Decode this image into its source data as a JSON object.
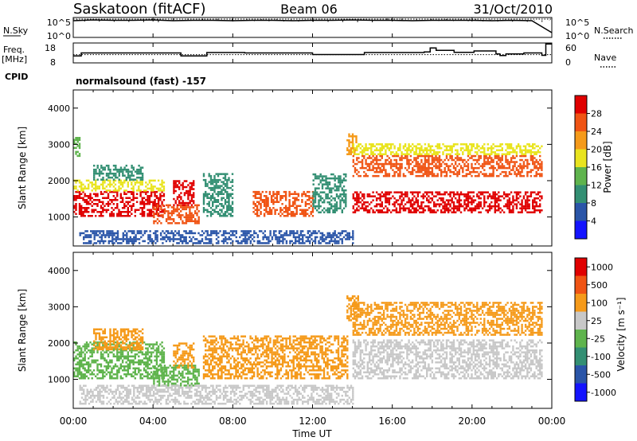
{
  "header": {
    "station": "Saskatoon (fitACF)",
    "beam": "Beam 06",
    "date": "31/Oct/2010"
  },
  "nsky_panel": {
    "left_label": "N.Sky",
    "right_label": "N.Search",
    "left_ticks": [
      "10^5",
      "10^0"
    ],
    "right_ticks": [
      "10^5",
      "10^0"
    ]
  },
  "freq_panel": {
    "left_label_1": "Freq.",
    "left_label_2": "[MHz]",
    "right_label": "Nave",
    "left_ticks": [
      "18",
      "8"
    ],
    "right_ticks": [
      "60",
      "0"
    ]
  },
  "cpid": {
    "label": "CPID",
    "value": "normalsound (fast) -157"
  },
  "xaxis": {
    "title": "Time UT",
    "ticks": [
      "00:00",
      "04:00",
      "08:00",
      "12:00",
      "16:00",
      "20:00",
      "00:00"
    ]
  },
  "chart_data": [
    {
      "type": "line",
      "title": "N.Sky / N.Search",
      "xlabel": "",
      "ylabel": "",
      "x_range": [
        "00:00",
        "24:00"
      ],
      "ylim_log10": [
        0,
        5
      ],
      "series": [
        {
          "name": "N.Sky",
          "x_hours": [
            0,
            1,
            2,
            3,
            4,
            5,
            6,
            7,
            8,
            9,
            10,
            11,
            12,
            13,
            14,
            15,
            16,
            17,
            18,
            19,
            20,
            21,
            22,
            23,
            24
          ],
          "values_log10": [
            4.2,
            4.4,
            4.3,
            4.3,
            4.4,
            4.2,
            4.3,
            4.3,
            4.2,
            4.3,
            4.3,
            4.2,
            4.3,
            4.3,
            4.4,
            4.3,
            4.3,
            4.2,
            4.3,
            4.3,
            4.3,
            4.2,
            4.3,
            4.2,
            1.2
          ]
        },
        {
          "name": "N.Search",
          "x_hours": [
            0,
            4,
            8,
            12,
            16,
            20,
            24
          ],
          "values_log10": [
            4.6,
            4.6,
            4.6,
            4.6,
            4.6,
            4.6,
            4.6
          ]
        }
      ]
    },
    {
      "type": "line",
      "title": "Freq. / Nave",
      "xlabel": "",
      "ylabel": "Freq. [MHz]",
      "ylim": [
        8,
        18
      ],
      "y2lim": [
        0,
        60
      ],
      "series": [
        {
          "name": "Freq.",
          "x_hours": [
            0,
            0.4,
            5.4,
            6.7,
            8.6,
            12.0,
            14.6,
            17.6,
            17.9,
            18.2,
            19.1,
            20.1,
            21.2,
            21.4,
            21.7,
            22.6,
            23.5,
            23.7,
            24
          ],
          "values": [
            11.5,
            13.0,
            11.5,
            13.2,
            13.0,
            12.2,
            13.2,
            13.5,
            15.5,
            14.3,
            13.3,
            14.0,
            12.5,
            11.7,
            12.5,
            13.0,
            11.8,
            17.5,
            17.5
          ]
        },
        {
          "name": "Nave",
          "x_hours": [
            0,
            24
          ],
          "values": [
            25,
            25
          ]
        }
      ]
    },
    {
      "type": "heatmap",
      "title": "",
      "xlabel": "Time UT",
      "ylabel": "Slant Range [km]",
      "x_range": [
        "00:00",
        "24:00"
      ],
      "ylim": [
        200,
        4500
      ],
      "yticks": [
        1000,
        2000,
        3000,
        4000
      ],
      "colorbar": {
        "label": "Power [dB]",
        "ticks": [
          "4",
          "8",
          "12",
          "16",
          "20",
          "24",
          "28"
        ],
        "colors": [
          "#1414ff",
          "#2a55a8",
          "#338f73",
          "#5fb44d",
          "#e9e41f",
          "#f59a1a",
          "#f05414",
          "#e00000"
        ]
      },
      "scatter_bands": [
        {
          "t0": 0.0,
          "t1": 0.3,
          "r0": 2600,
          "r1": 3200,
          "level": 3
        },
        {
          "t0": 0.0,
          "t1": 4.5,
          "r0": 1000,
          "r1": 1700,
          "level": 7
        },
        {
          "t0": 0.0,
          "t1": 4.5,
          "r0": 1700,
          "r1": 2000,
          "level": 4
        },
        {
          "t0": 1.0,
          "t1": 3.5,
          "r0": 2000,
          "r1": 2400,
          "level": 2
        },
        {
          "t0": 4.0,
          "t1": 6.3,
          "r0": 800,
          "r1": 1300,
          "level": 6
        },
        {
          "t0": 5.0,
          "t1": 6.0,
          "r0": 1300,
          "r1": 2000,
          "level": 7
        },
        {
          "t0": 6.5,
          "t1": 8.0,
          "r0": 1000,
          "r1": 2200,
          "level": 2
        },
        {
          "t0": 9.0,
          "t1": 12.0,
          "r0": 1000,
          "r1": 1700,
          "level": 6
        },
        {
          "t0": 12.0,
          "t1": 13.7,
          "r0": 1100,
          "r1": 2200,
          "level": 2
        },
        {
          "t0": 13.7,
          "t1": 14.2,
          "r0": 2700,
          "r1": 3300,
          "level": 5
        },
        {
          "t0": 14.0,
          "t1": 23.5,
          "r0": 1100,
          "r1": 1700,
          "level": 7
        },
        {
          "t0": 14.0,
          "t1": 23.5,
          "r0": 2100,
          "r1": 2700,
          "level": 6
        },
        {
          "t0": 14.0,
          "t1": 23.5,
          "r0": 2700,
          "r1": 3000,
          "level": 4
        },
        {
          "t0": 0.3,
          "t1": 14.0,
          "r0": 250,
          "r1": 600,
          "level": 1
        }
      ]
    },
    {
      "type": "heatmap",
      "title": "",
      "xlabel": "Time UT",
      "ylabel": "Slant Range [km]",
      "x_range": [
        "00:00",
        "24:00"
      ],
      "ylim": [
        200,
        4500
      ],
      "yticks": [
        1000,
        2000,
        3000,
        4000
      ],
      "colorbar": {
        "label": "Velocity [m s^-1]",
        "ticks": [
          "1000",
          "500",
          "100",
          "25",
          "-25",
          "-100",
          "-500",
          "-1000"
        ],
        "colors": [
          "#1414ff",
          "#2a55a8",
          "#338f73",
          "#5fb44d",
          "#c8c8c8",
          "#f59a1a",
          "#f05414",
          "#e00000"
        ]
      },
      "scatter_bands": [
        {
          "t0": 0.0,
          "t1": 4.5,
          "r0": 1000,
          "r1": 2000,
          "level": 3
        },
        {
          "t0": 1.0,
          "t1": 3.5,
          "r0": 1800,
          "r1": 2400,
          "level": 5
        },
        {
          "t0": 4.0,
          "t1": 6.3,
          "r0": 800,
          "r1": 1400,
          "level": 3
        },
        {
          "t0": 5.0,
          "t1": 6.0,
          "r0": 1300,
          "r1": 2000,
          "level": 5
        },
        {
          "t0": 6.5,
          "t1": 13.7,
          "r0": 1000,
          "r1": 2200,
          "level": 5
        },
        {
          "t0": 13.7,
          "t1": 14.3,
          "r0": 2600,
          "r1": 3300,
          "level": 5
        },
        {
          "t0": 14.0,
          "t1": 23.5,
          "r0": 2200,
          "r1": 3100,
          "level": 5
        },
        {
          "t0": 14.0,
          "t1": 23.5,
          "r0": 1000,
          "r1": 2100,
          "level": 4
        },
        {
          "t0": 0.3,
          "t1": 14.0,
          "r0": 300,
          "r1": 800,
          "level": 4
        }
      ]
    }
  ]
}
